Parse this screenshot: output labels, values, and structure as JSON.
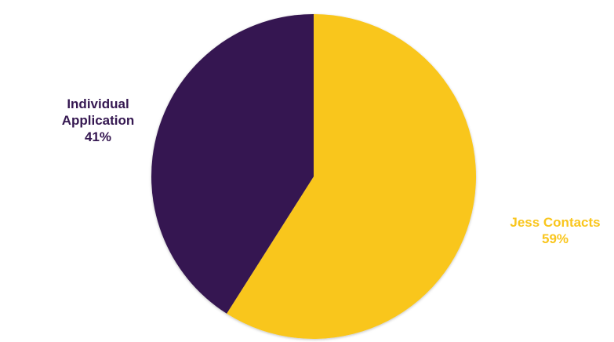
{
  "chart_data": {
    "type": "pie",
    "title": "",
    "slices": [
      {
        "label": "Jess Contacts",
        "value": 59,
        "value_label": "59%",
        "color": "#F9C61E"
      },
      {
        "label_lines": [
          "Individual",
          "Application"
        ],
        "label": "Individual Application",
        "value": 41,
        "value_label": "41%",
        "color": "#351851"
      }
    ],
    "start_angle": "12 o'clock",
    "direction": "clockwise",
    "legend": "none"
  }
}
